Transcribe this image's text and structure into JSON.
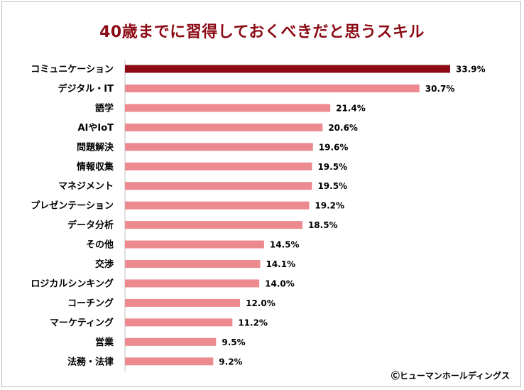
{
  "title": "40歳までに習得しておくべきだと思うスキル",
  "credit": "Ⓒヒューマンホールディングス",
  "colors": {
    "highlight": "#8b0a14",
    "bar": "#ec8a90",
    "axis": "#bfbfbf"
  },
  "chart_data": {
    "type": "bar",
    "orientation": "horizontal",
    "title": "40歳までに習得しておくべきだと思うスキル",
    "unit": "%",
    "categories": [
      "コミュニケーション",
      "デジタル・IT",
      "語学",
      "AIやIoT",
      "問題解決",
      "情報収集",
      "マネジメント",
      "プレゼンテーション",
      "データ分析",
      "その他",
      "交渉",
      "ロジカルシンキング",
      "コーチング",
      "マーケティング",
      "営業",
      "法務・法律"
    ],
    "values": [
      33.9,
      30.7,
      21.4,
      20.6,
      19.6,
      19.5,
      19.5,
      19.2,
      18.5,
      14.5,
      14.1,
      14.0,
      12.0,
      11.2,
      9.5,
      9.2
    ],
    "labels": [
      "33.9%",
      "30.7%",
      "21.4%",
      "20.6%",
      "19.6%",
      "19.5%",
      "19.5%",
      "19.2%",
      "18.5%",
      "14.5%",
      "14.1%",
      "14.0%",
      "12.0%",
      "11.2%",
      "9.5%",
      "9.2%"
    ],
    "highlighted_index": 0,
    "xlim": [
      0,
      35
    ],
    "grid": false,
    "legend": false
  }
}
